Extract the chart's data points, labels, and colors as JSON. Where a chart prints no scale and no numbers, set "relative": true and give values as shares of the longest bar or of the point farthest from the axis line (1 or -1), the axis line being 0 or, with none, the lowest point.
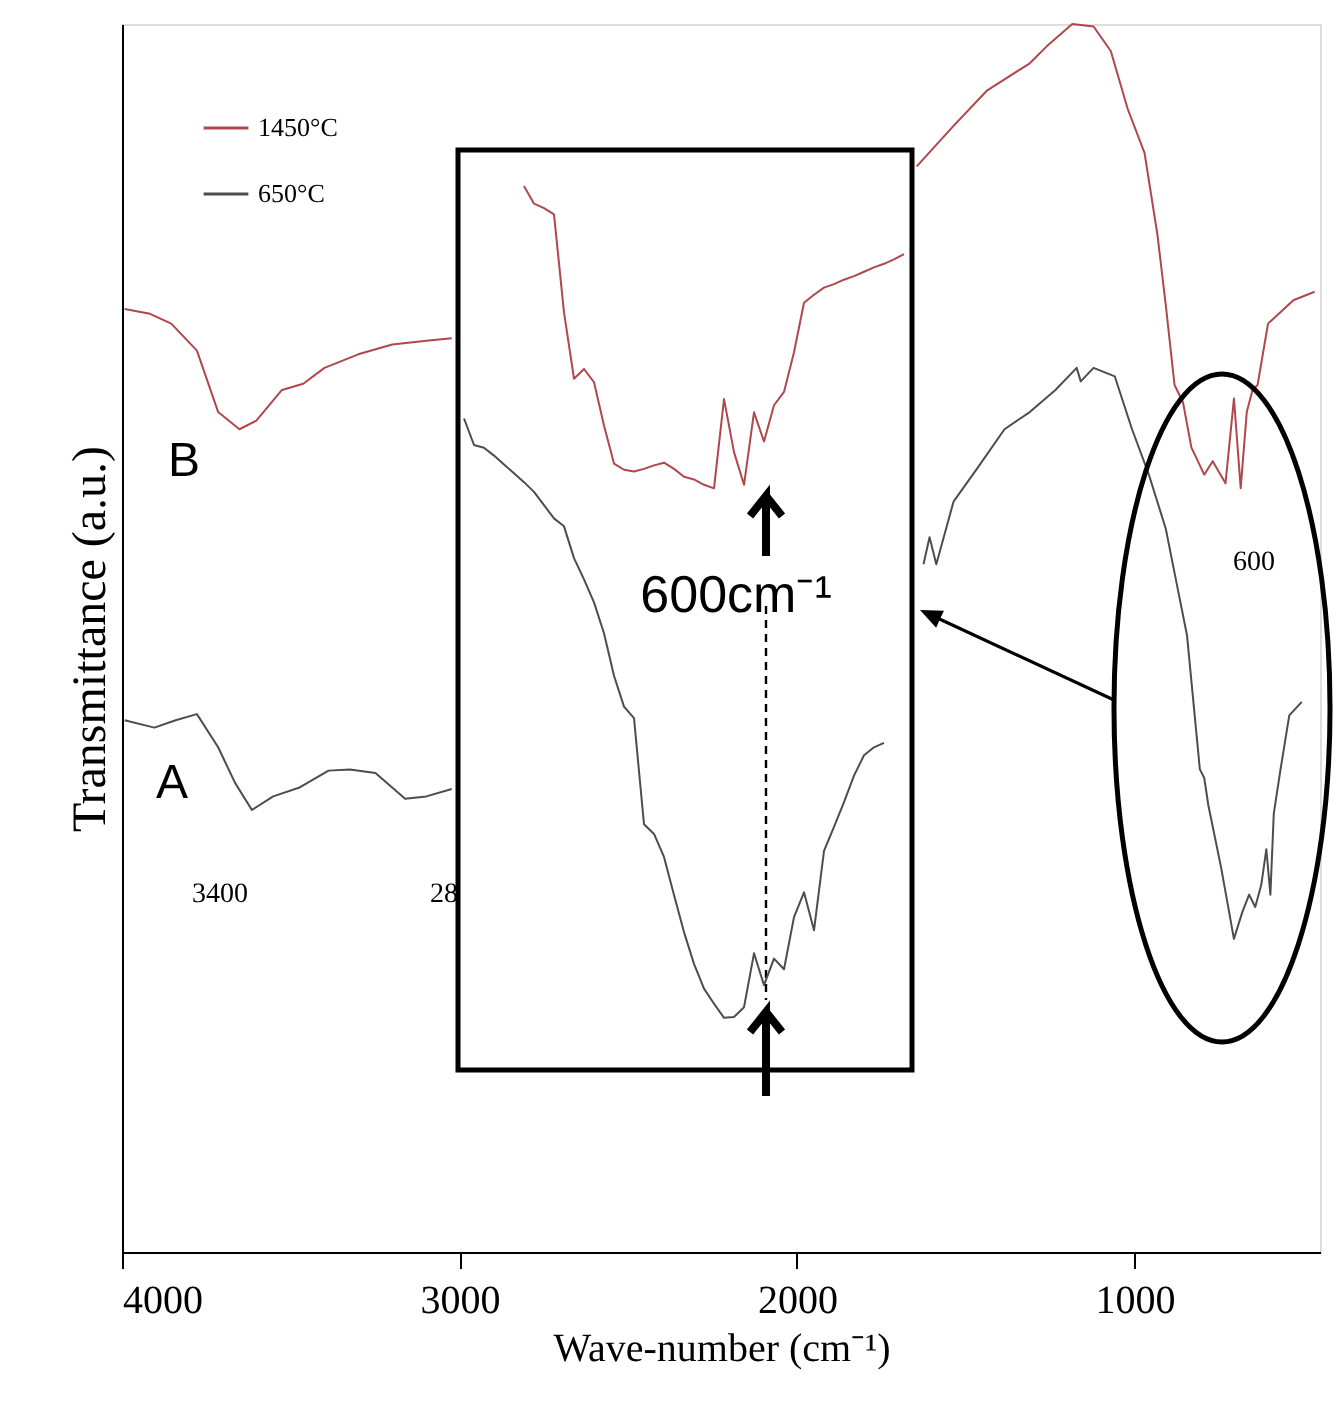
{
  "chart_data": [
    {
      "type": "line",
      "relative": true,
      "xlabel": "Wave-number (cm⁻¹)",
      "ylabel": "Transmittance (a.u.)",
      "xlim": [
        4000,
        450
      ],
      "xticks": [
        4000,
        3000,
        2000,
        1000
      ],
      "legend": "top left",
      "series": [
        {
          "name": "1450°C",
          "color": "#b0474c",
          "x": [
            3992,
            3917,
            3854,
            3778,
            3715,
            3652,
            3602,
            3526,
            3463,
            3400,
            3300,
            3199,
            3098,
            3023,
            2400,
            1645,
            1612,
            1536,
            1436,
            1310,
            1259,
            1184,
            1121,
            1070,
            1020,
            970,
            932,
            907,
            881,
            856,
            831,
            793,
            768,
            730,
            705,
            685,
            667,
            650,
            635,
            604,
            529,
            466
          ],
          "values": [
            0.768,
            0.764,
            0.756,
            0.734,
            0.684,
            0.67,
            0.677,
            0.702,
            0.707,
            0.72,
            0.731,
            0.739,
            0.742,
            0.744,
            null,
            0.884,
            0.894,
            0.917,
            0.946,
            0.968,
            0.982,
            1.0,
            0.998,
            0.978,
            0.931,
            0.895,
            0.829,
            0.771,
            0.706,
            0.692,
            0.655,
            0.633,
            0.644,
            0.626,
            0.695,
            0.622,
            0.684,
            0.702,
            0.706,
            0.756,
            0.775,
            0.782
          ]
        },
        {
          "name": "650°C",
          "color": "#4d4d4d",
          "x": [
            3992,
            3904,
            3841,
            3778,
            3715,
            3665,
            3615,
            3552,
            3476,
            3388,
            3325,
            3249,
            3161,
            3098,
            3023,
            2400,
            1625,
            1607,
            1587,
            1536,
            1461,
            1385,
            1310,
            1234,
            1171,
            1159,
            1121,
            1058,
            1007,
            957,
            907,
            881,
            844,
            806,
            793,
            781,
            743,
            705,
            680,
            660,
            642,
            624,
            609,
            597,
            587,
            567,
            541,
            504
          ],
          "values": [
            0.433,
            0.427,
            0.433,
            0.438,
            0.411,
            0.382,
            0.36,
            0.371,
            0.378,
            0.392,
            0.393,
            0.39,
            0.369,
            0.371,
            0.377,
            null,
            0.56,
            0.582,
            0.56,
            0.611,
            0.64,
            0.67,
            0.684,
            0.702,
            0.72,
            0.709,
            0.72,
            0.713,
            0.67,
            0.633,
            0.589,
            0.553,
            0.502,
            0.393,
            0.386,
            0.364,
            0.313,
            0.255,
            0.277,
            0.291,
            0.281,
            0.299,
            0.328,
            0.291,
            0.357,
            0.393,
            0.437,
            0.448
          ]
        }
      ],
      "annotations": [
        "B",
        "A",
        "3400",
        "28",
        "600"
      ]
    },
    {
      "type": "line",
      "relative": true,
      "categories": [
        null,
        null,
        null,
        null,
        null,
        null,
        null,
        null,
        null,
        null,
        null,
        null,
        null,
        null,
        null,
        null,
        null,
        null,
        null,
        null,
        null,
        null,
        null,
        null,
        null,
        null,
        null,
        null,
        null,
        null,
        null,
        null,
        null,
        null,
        null,
        null,
        null,
        null,
        null,
        null,
        null,
        null,
        null,
        null,
        null
      ],
      "series": [
        {
          "color": "#b0474c",
          "values": [
            null,
            null,
            null,
            null,
            null,
            null,
            1.0,
            0.98,
            0.975,
            0.968,
            0.857,
            0.782,
            0.793,
            0.778,
            0.729,
            0.686,
            0.679,
            0.677,
            0.68,
            0.684,
            0.687,
            0.68,
            0.671,
            0.668,
            0.662,
            0.658,
            0.759,
            0.699,
            0.662,
            0.744,
            0.711,
            0.752,
            0.767,
            0.812,
            0.868,
            0.877,
            0.885,
            0.889,
            0.894,
            0.898,
            0.903,
            0.908,
            0.912,
            0.917,
            0.923
          ]
        },
        {
          "color": "#4d4d4d",
          "values": [
            0.737,
            0.707,
            0.704,
            0.695,
            0.685,
            0.675,
            0.665,
            0.654,
            0.639,
            0.624,
            0.615,
            0.579,
            0.555,
            0.529,
            0.494,
            0.446,
            0.411,
            0.398,
            0.278,
            0.267,
            0.241,
            0.198,
            0.156,
            0.12,
            0.092,
            0.075,
            0.059,
            0.06,
            0.071,
            0.132,
            0.096,
            0.126,
            0.114,
            0.173,
            0.201,
            0.158,
            0.248,
            0.275,
            0.303,
            0.333,
            0.356,
            0.365,
            0.37,
            null,
            null
          ]
        }
      ],
      "annotations": [
        "600cm⁻¹"
      ]
    }
  ]
}
